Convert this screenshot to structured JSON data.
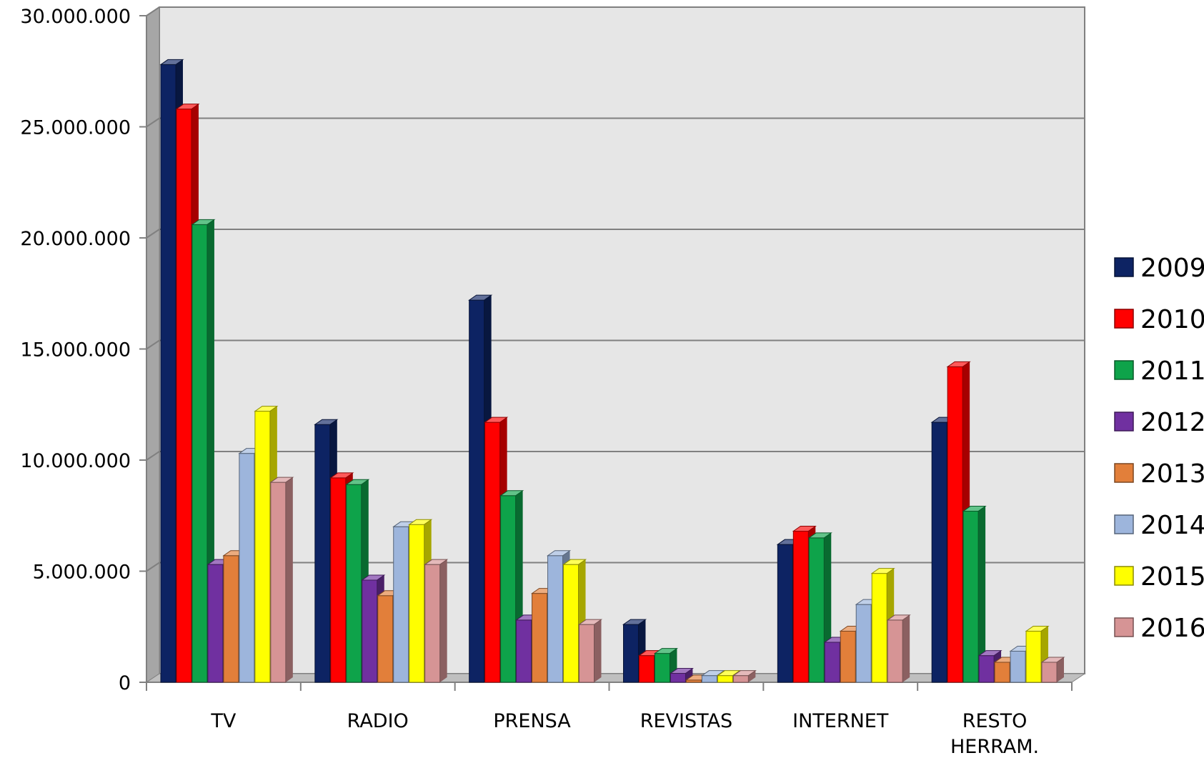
{
  "chart_data": {
    "type": "bar",
    "style": "3d-clustered-column",
    "categories": [
      "TV",
      "RADIO",
      "PRENSA",
      "REVISTAS",
      "INTERNET",
      "RESTO HERRAM."
    ],
    "category_lines": [
      [
        "TV"
      ],
      [
        "RADIO"
      ],
      [
        "PRENSA"
      ],
      [
        "REVISTAS"
      ],
      [
        "INTERNET"
      ],
      [
        "RESTO",
        "HERRAM."
      ]
    ],
    "series": [
      {
        "name": "2009",
        "color": "#0d2363",
        "values": [
          27800000,
          11600000,
          17200000,
          2600000,
          6200000,
          11700000
        ]
      },
      {
        "name": "2010",
        "color": "#ff0000",
        "values": [
          25800000,
          9200000,
          11700000,
          1200000,
          6800000,
          14200000
        ]
      },
      {
        "name": "2011",
        "color": "#0ea34a",
        "values": [
          20600000,
          8900000,
          8400000,
          1300000,
          6500000,
          7700000
        ]
      },
      {
        "name": "2012",
        "color": "#7030a0",
        "values": [
          5300000,
          4600000,
          2800000,
          400000,
          1800000,
          1200000
        ]
      },
      {
        "name": "2013",
        "color": "#e27f3a",
        "values": [
          5700000,
          3900000,
          4000000,
          100000,
          2300000,
          900000
        ]
      },
      {
        "name": "2014",
        "color": "#9db5dc",
        "values": [
          10300000,
          7000000,
          5700000,
          300000,
          3500000,
          1400000
        ]
      },
      {
        "name": "2015",
        "color": "#ffff00",
        "values": [
          12200000,
          7100000,
          5300000,
          300000,
          4900000,
          2300000
        ]
      },
      {
        "name": "2016",
        "color": "#d69495",
        "values": [
          9000000,
          5300000,
          2600000,
          300000,
          2800000,
          900000
        ]
      }
    ],
    "y_ticks": [
      "0",
      "5.000.000",
      "10.000.000",
      "15.000.000",
      "20.000.000",
      "25.000.000",
      "30.000.000"
    ],
    "ylim": [
      0,
      30000000
    ],
    "grid": true,
    "legend_position": "right",
    "title": "",
    "xlabel": "",
    "ylabel": ""
  }
}
